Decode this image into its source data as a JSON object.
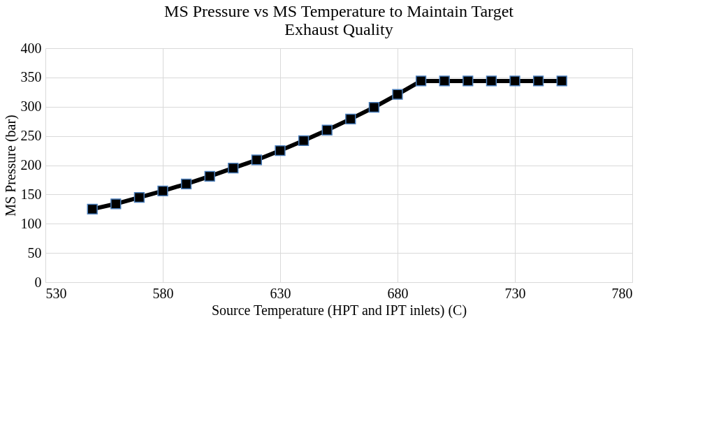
{
  "chart_data": {
    "type": "line",
    "title": "MS Pressure  vs MS Temperature to Maintain Target Exhaust Quality",
    "xlabel": "Source Temperature (HPT and IPT inlets) (C)",
    "ylabel": "MS Pressure (bar)",
    "x": [
      550,
      560,
      570,
      580,
      590,
      600,
      610,
      620,
      630,
      640,
      650,
      660,
      670,
      680,
      690,
      700,
      710,
      720,
      730,
      740,
      750
    ],
    "series": [
      {
        "color": "#000000",
        "values": [
          125,
          134,
          145,
          156,
          168,
          181,
          195,
          209,
          225,
          242,
          260,
          279,
          299,
          321,
          344,
          344,
          344,
          344,
          344,
          344,
          344
        ]
      }
    ],
    "xlim": [
      530,
      780
    ],
    "xticks": [
      530,
      580,
      630,
      680,
      730,
      780
    ],
    "ylim": [
      0,
      400
    ],
    "yticks": [
      0,
      50,
      100,
      150,
      200,
      250,
      300,
      350,
      400
    ],
    "grid": true,
    "marker": "square",
    "line_style": "solid"
  }
}
